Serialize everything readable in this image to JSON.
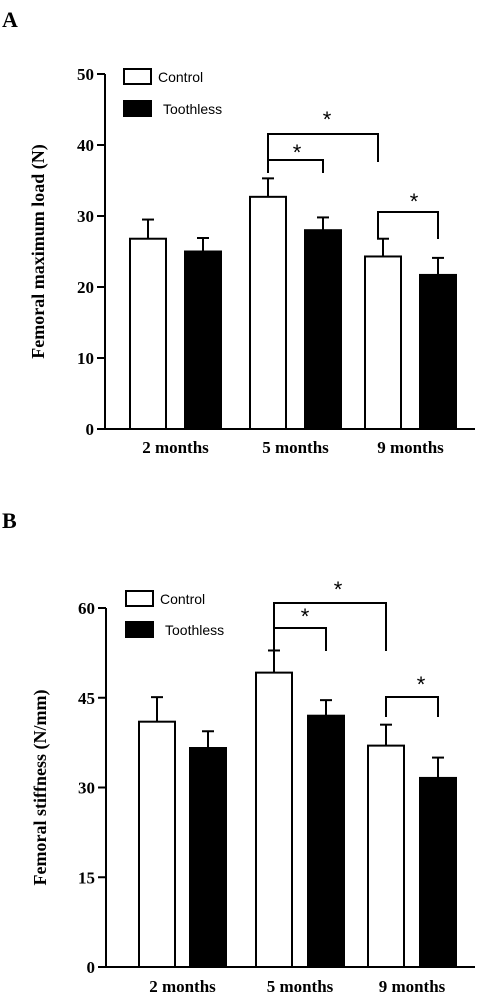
{
  "chart_data": [
    {
      "type": "bar",
      "panel": "A",
      "title": "",
      "xlabel": "",
      "ylabel": "Femoral maximum load (N)",
      "ylim": [
        0,
        50
      ],
      "yticks": [
        "0",
        "10",
        "20",
        "30",
        "40",
        "50"
      ],
      "categories": [
        "2 months",
        "5 months",
        "9 months"
      ],
      "legend": {
        "placement": "top-left",
        "entries": [
          "Control",
          "Toothless"
        ]
      },
      "series": [
        {
          "name": "Control",
          "values": [
            26.8,
            32.7,
            24.3
          ],
          "errors": [
            2.7,
            2.6,
            2.5
          ],
          "color": "#ffffff"
        },
        {
          "name": "Toothless",
          "values": [
            25.0,
            28.0,
            21.7
          ],
          "errors": [
            1.9,
            1.8,
            2.4
          ],
          "color": "#000000"
        }
      ],
      "significance": [
        {
          "label": "*",
          "from": [
            "5 months",
            "Control"
          ],
          "to": [
            "5 months",
            "Toothless"
          ]
        },
        {
          "label": "*",
          "from": [
            "5 months",
            "Control"
          ],
          "to": [
            "9 months",
            "Control"
          ]
        },
        {
          "label": "*",
          "from": [
            "9 months",
            "Control"
          ],
          "to": [
            "9 months",
            "Toothless"
          ]
        }
      ],
      "grid": false
    },
    {
      "type": "bar",
      "panel": "B",
      "title": "",
      "xlabel": "",
      "ylabel": "Femoral stiffness (N/mm)",
      "ylim": [
        0,
        60
      ],
      "yticks": [
        "0",
        "15",
        "30",
        "45",
        "60"
      ],
      "categories": [
        "2 months",
        "5 months",
        "9 months"
      ],
      "legend": {
        "placement": "top-left",
        "entries": [
          "Control",
          "Toothless"
        ]
      },
      "series": [
        {
          "name": "Control",
          "values": [
            41.0,
            49.2,
            37.0
          ],
          "errors": [
            4.1,
            3.7,
            3.5
          ],
          "color": "#ffffff"
        },
        {
          "name": "Toothless",
          "values": [
            36.6,
            42.0,
            31.6
          ],
          "errors": [
            2.8,
            2.6,
            3.4
          ],
          "color": "#000000"
        }
      ],
      "significance": [
        {
          "label": "*",
          "from": [
            "5 months",
            "Control"
          ],
          "to": [
            "5 months",
            "Toothless"
          ]
        },
        {
          "label": "*",
          "from": [
            "5 months",
            "Control"
          ],
          "to": [
            "9 months",
            "Control"
          ]
        },
        {
          "label": "*",
          "from": [
            "9 months",
            "Control"
          ],
          "to": [
            "9 months",
            "Toothless"
          ]
        }
      ],
      "grid": false
    }
  ]
}
